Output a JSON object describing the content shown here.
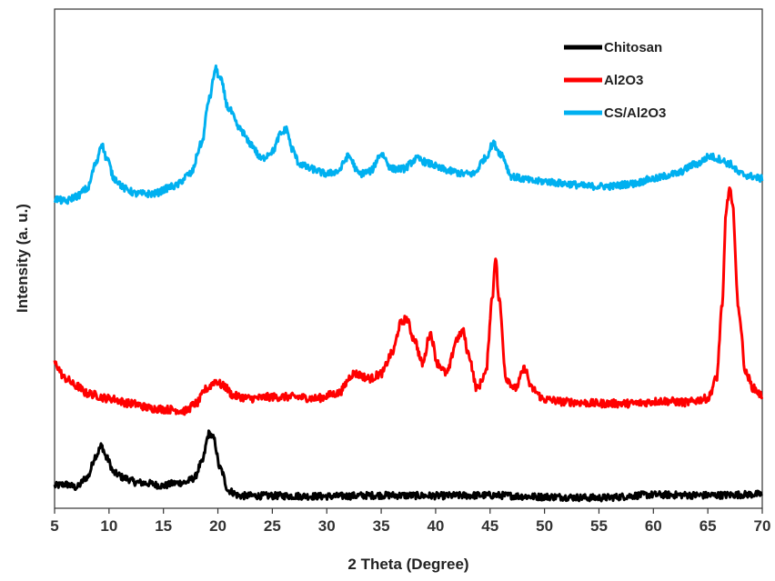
{
  "chart_data": {
    "type": "line",
    "title": "",
    "xlabel": "2 Theta (Degree)",
    "ylabel": "Intensity (a. u.)",
    "xlim": [
      5,
      70
    ],
    "ylim": [
      0,
      100
    ],
    "y_tick_labels": false,
    "xticks": [
      5,
      10,
      15,
      20,
      25,
      30,
      35,
      40,
      45,
      50,
      55,
      60,
      65,
      70
    ],
    "xtick_labels": [
      "5",
      "10",
      "15",
      "20",
      "25",
      "30",
      "35",
      "40",
      "45",
      "50",
      "55",
      "60",
      "65",
      "70"
    ],
    "grid": false,
    "legend": {
      "placement": "top-right"
    },
    "series": [
      {
        "name": "Chitosan",
        "color": "#000000",
        "noise": 0.7,
        "points": [
          [
            5,
            4.5
          ],
          [
            6,
            4.8
          ],
          [
            7,
            4.2
          ],
          [
            8,
            6.2
          ],
          [
            8.8,
            10.5
          ],
          [
            9.3,
            12.5
          ],
          [
            9.8,
            10
          ],
          [
            10.5,
            7
          ],
          [
            11.5,
            6
          ],
          [
            12.5,
            5.2
          ],
          [
            13.5,
            5
          ],
          [
            15,
            4.5
          ],
          [
            16,
            5
          ],
          [
            17,
            5.2
          ],
          [
            17.8,
            6
          ],
          [
            18.5,
            9
          ],
          [
            19.2,
            15
          ],
          [
            19.6,
            14
          ],
          [
            20.2,
            8
          ],
          [
            21,
            3.5
          ],
          [
            22,
            2.5
          ],
          [
            25,
            2.5
          ],
          [
            30,
            2.4
          ],
          [
            35,
            2.6
          ],
          [
            40,
            2.5
          ],
          [
            45,
            2.6
          ],
          [
            50,
            2.3
          ],
          [
            55,
            2.1
          ],
          [
            60,
            2.7
          ],
          [
            65,
            2.6
          ],
          [
            70,
            2.8
          ]
        ]
      },
      {
        "name": "Al2O3",
        "color": "#ff0000",
        "noise": 0.8,
        "points": [
          [
            5,
            29
          ],
          [
            6,
            26
          ],
          [
            7,
            24.5
          ],
          [
            8,
            23
          ],
          [
            10,
            22
          ],
          [
            12,
            21
          ],
          [
            14,
            20
          ],
          [
            15.5,
            19.8
          ],
          [
            17,
            19.5
          ],
          [
            18,
            21
          ],
          [
            19,
            24
          ],
          [
            19.8,
            25.5
          ],
          [
            20.5,
            24.5
          ],
          [
            21.5,
            22.5
          ],
          [
            23,
            22
          ],
          [
            25,
            22.3
          ],
          [
            27,
            22.3
          ],
          [
            29,
            22
          ],
          [
            31,
            23
          ],
          [
            32.5,
            27
          ],
          [
            34,
            26
          ],
          [
            35,
            27
          ],
          [
            36,
            31
          ],
          [
            36.8,
            37
          ],
          [
            37.3,
            38
          ],
          [
            38,
            34
          ],
          [
            38.8,
            29
          ],
          [
            39.5,
            35
          ],
          [
            40.2,
            29
          ],
          [
            41,
            27
          ],
          [
            42,
            34
          ],
          [
            42.5,
            35.5
          ],
          [
            43,
            31
          ],
          [
            43.8,
            24
          ],
          [
            44.6,
            27
          ],
          [
            45.2,
            42
          ],
          [
            45.5,
            50.5
          ],
          [
            45.8,
            42
          ],
          [
            46.5,
            26
          ],
          [
            47.3,
            24
          ],
          [
            48.2,
            28
          ],
          [
            48.8,
            24
          ],
          [
            50,
            21.8
          ],
          [
            52,
            21.3
          ],
          [
            55,
            21
          ],
          [
            58,
            21
          ],
          [
            61,
            21.5
          ],
          [
            63,
            21.2
          ],
          [
            65,
            22
          ],
          [
            65.8,
            26
          ],
          [
            66.3,
            40
          ],
          [
            66.7,
            60
          ],
          [
            67,
            64
          ],
          [
            67.3,
            60
          ],
          [
            67.8,
            40
          ],
          [
            68.5,
            27
          ],
          [
            69.2,
            24
          ],
          [
            70,
            22.5
          ]
        ]
      },
      {
        "name": "CS/Al2O3",
        "color": "#00b0f0",
        "noise": 0.7,
        "points": [
          [
            5,
            62
          ],
          [
            6,
            61.5
          ],
          [
            7,
            62.5
          ],
          [
            8,
            64
          ],
          [
            8.8,
            69
          ],
          [
            9.3,
            73
          ],
          [
            9.8,
            70
          ],
          [
            10.5,
            66
          ],
          [
            11.5,
            64
          ],
          [
            12.5,
            63
          ],
          [
            14,
            63
          ],
          [
            16,
            64.5
          ],
          [
            17.5,
            67
          ],
          [
            18.5,
            73
          ],
          [
            19.2,
            82
          ],
          [
            19.8,
            88
          ],
          [
            20.2,
            86
          ],
          [
            21,
            80
          ],
          [
            22,
            76
          ],
          [
            23,
            73
          ],
          [
            24,
            70
          ],
          [
            25,
            71.5
          ],
          [
            25.8,
            75
          ],
          [
            26.3,
            76
          ],
          [
            26.8,
            72
          ],
          [
            27.5,
            69
          ],
          [
            28.5,
            68
          ],
          [
            30,
            67
          ],
          [
            31,
            67.5
          ],
          [
            32,
            70.5
          ],
          [
            33,
            67
          ],
          [
            34,
            67.5
          ],
          [
            35,
            71
          ],
          [
            36,
            68
          ],
          [
            37,
            68
          ],
          [
            38.3,
            70
          ],
          [
            39.5,
            69
          ],
          [
            40.5,
            68
          ],
          [
            41.5,
            67.5
          ],
          [
            42.5,
            67
          ],
          [
            43.5,
            67
          ],
          [
            44.5,
            70
          ],
          [
            45.3,
            73
          ],
          [
            46,
            71
          ],
          [
            47,
            66.5
          ],
          [
            48,
            66
          ],
          [
            49,
            65.5
          ],
          [
            50,
            65.5
          ],
          [
            52,
            65
          ],
          [
            54,
            64.5
          ],
          [
            56,
            64.5
          ],
          [
            58,
            65
          ],
          [
            60,
            66
          ],
          [
            62,
            67
          ],
          [
            64,
            69
          ],
          [
            65.2,
            70.5
          ],
          [
            66,
            70
          ],
          [
            67,
            69
          ],
          [
            68,
            67
          ],
          [
            69,
            66.5
          ],
          [
            70,
            66
          ]
        ]
      }
    ]
  }
}
